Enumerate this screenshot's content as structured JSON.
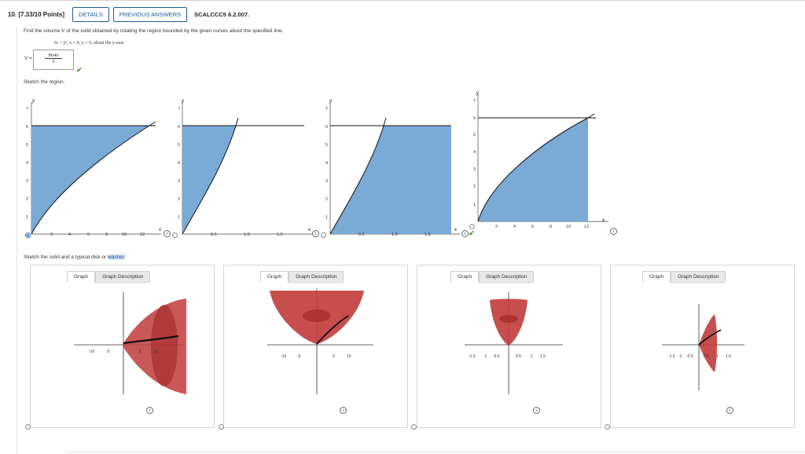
{
  "header": {
    "question": "10. [7.33/10 Points]",
    "details_button": "DETAILS",
    "prev_button": "PREVIOUS ANSWERS",
    "code": "SCALCCC5 6.2.007."
  },
  "problem": {
    "prompt": "Find the volume V of the solid obtained by rotating the region bounded by the given curves about the specified line.",
    "equation": "3x = y², x = 0, y = 6; about the y-axis",
    "v_label": "V =",
    "answer_num": "864π",
    "answer_den": "5",
    "sketch_region_label": "Sketch the region.",
    "sketch_solid_label_prefix": "Sketch the solid and a typical disk or ",
    "sketch_solid_label_highlight": "washer."
  },
  "region_graphs": [
    {
      "x_ticks": [
        "2",
        "4",
        "6",
        "8",
        "10",
        "12"
      ],
      "y_ticks": [
        "1",
        "2",
        "3",
        "4",
        "5",
        "6",
        "7"
      ],
      "x_label": "x",
      "y_label": "y",
      "selected": true
    },
    {
      "x_ticks": [
        "0.5",
        "1.0",
        "1.5"
      ],
      "y_ticks": [
        "1",
        "2",
        "3",
        "4",
        "5",
        "6",
        "7"
      ],
      "x_label": "x",
      "y_label": "y",
      "selected": false
    },
    {
      "x_ticks": [
        "0.5",
        "1.0",
        "1.5"
      ],
      "y_ticks": [
        "1",
        "2",
        "3",
        "4",
        "5",
        "6",
        "7"
      ],
      "x_label": "x",
      "y_label": "y",
      "selected": false
    },
    {
      "x_ticks": [
        "2",
        "4",
        "6",
        "8",
        "10",
        "12"
      ],
      "y_ticks": [
        "1",
        "2",
        "3",
        "4",
        "5",
        "6",
        "7"
      ],
      "x_label": "x",
      "y_label": "y",
      "selected": false
    }
  ],
  "solid_panels": [
    {
      "tab_graph": "Graph",
      "tab_desc": "Graph Description",
      "x_ticks": [
        "-10",
        "-5",
        "5",
        "10"
      ]
    },
    {
      "tab_graph": "Graph",
      "tab_desc": "Graph Description",
      "x_ticks": [
        "-10",
        "-5",
        "5",
        "10"
      ]
    },
    {
      "tab_graph": "Graph",
      "tab_desc": "Graph Description",
      "x_ticks": [
        "-1.5",
        "-1",
        "-0.5",
        "0.5",
        "1",
        "1.5"
      ]
    },
    {
      "tab_graph": "Graph",
      "tab_desc": "Graph Description",
      "x_ticks": [
        "-1.5",
        "-1",
        "-0.5",
        "0.5",
        "1",
        "1.5"
      ]
    }
  ],
  "colors": {
    "region_fill": "#7aaad6",
    "solid_fill": "#c23b3b",
    "accent": "#1f5aa0",
    "correct": "#4a9a2a"
  },
  "icons": {
    "check": "check-icon",
    "info": "info-icon"
  }
}
